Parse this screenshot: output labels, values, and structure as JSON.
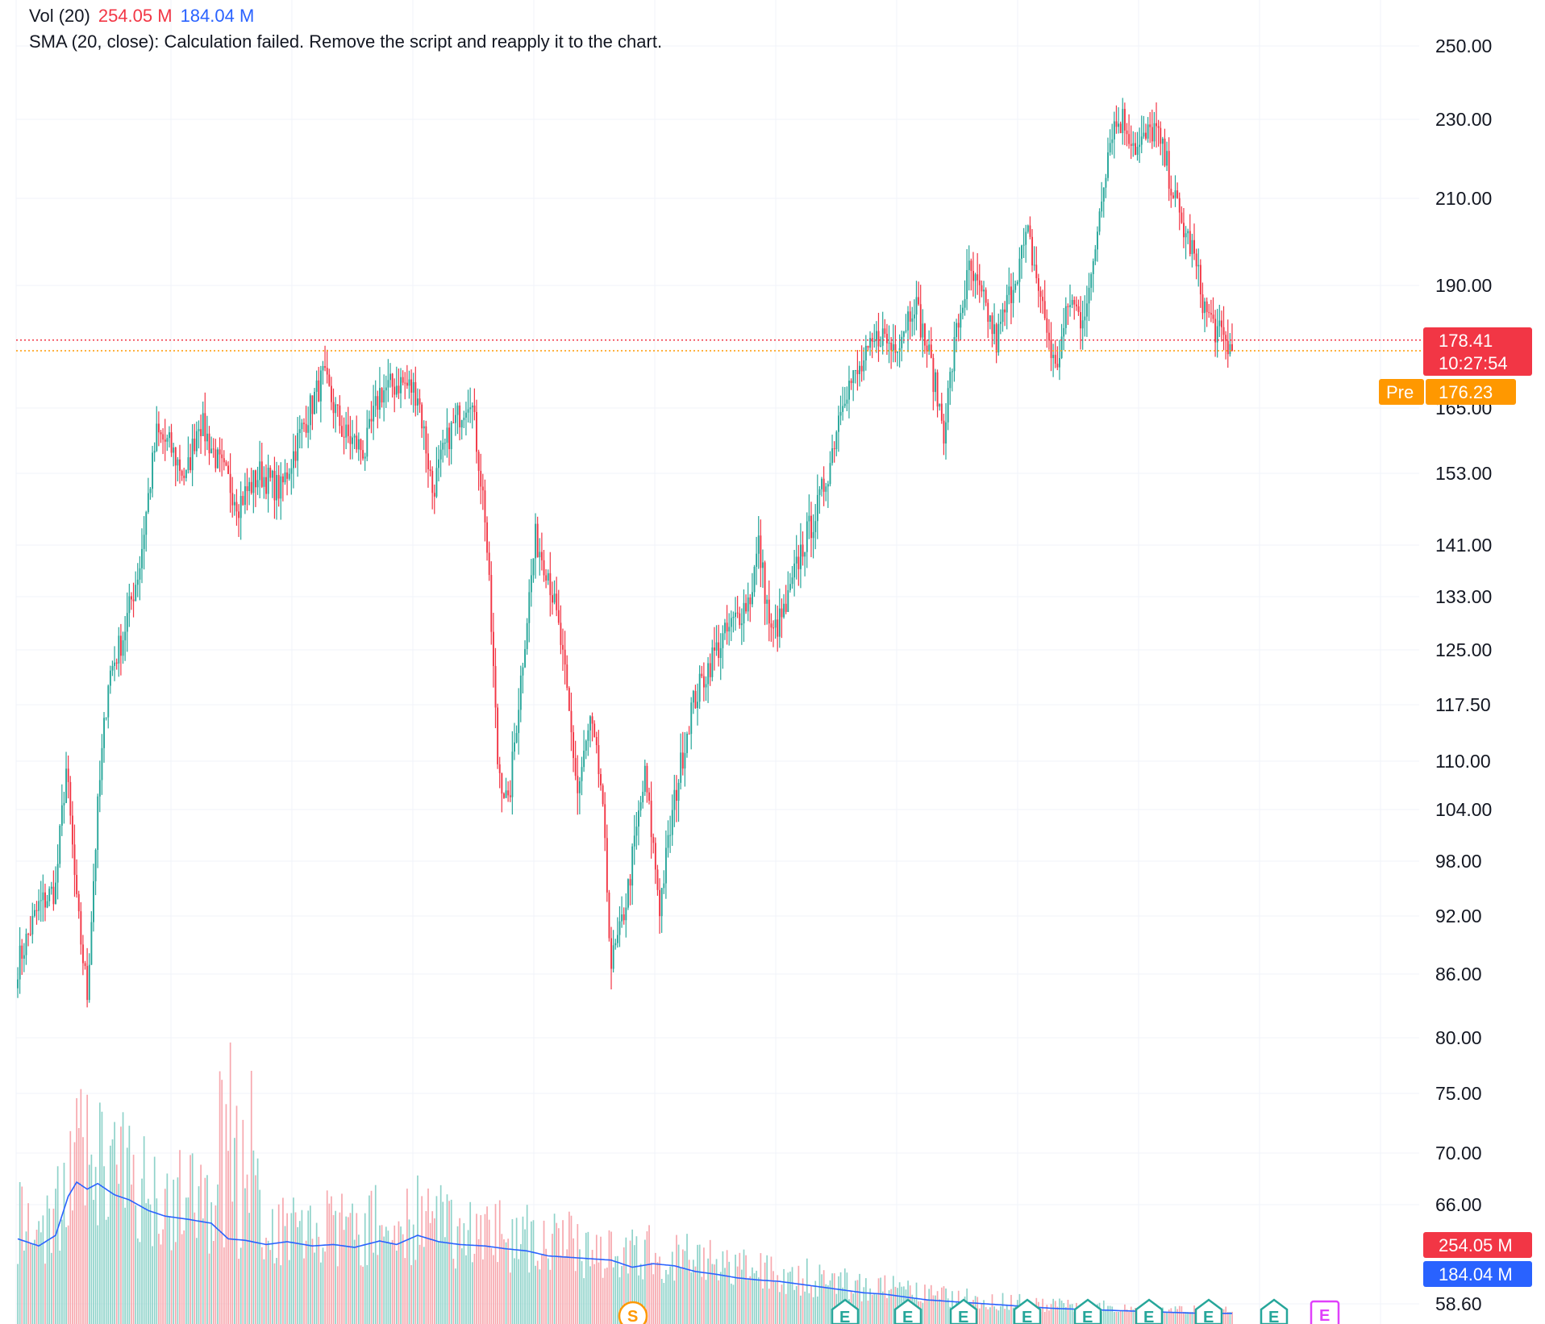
{
  "legend": {
    "volume_label": "Vol (20)",
    "volume_value": "254.05 M",
    "volume_ma_value": "184.04 M",
    "error_text": "SMA (20, close): Calculation failed. Remove the script and reapply it to the chart."
  },
  "colors": {
    "up": "#26a69a",
    "down": "#f23645",
    "volume_up": "#8fd3ca",
    "volume_down": "#f7a8ae",
    "volume_ma": "#2962ff",
    "premarket": "#ff9800",
    "grid": "#f0f3fa"
  },
  "price_axis": {
    "labels": [
      "250.00",
      "230.00",
      "210.00",
      "190.00",
      "165.00",
      "153.00",
      "141.00",
      "133.00",
      "125.00",
      "117.50",
      "110.00",
      "104.00",
      "98.00",
      "92.00",
      "86.00",
      "80.00",
      "75.00",
      "70.00",
      "66.00",
      "58.60"
    ]
  },
  "tags": {
    "last_price": "178.41",
    "countdown": "10:27:54",
    "pre_label": "Pre",
    "pre_price": "176.23",
    "volume": "254.05 M",
    "volume_ma": "184.04 M"
  },
  "events": [
    {
      "type": "split",
      "label": "S"
    },
    {
      "type": "earnings",
      "label": "E"
    },
    {
      "type": "earnings",
      "label": "E"
    },
    {
      "type": "earnings",
      "label": "E"
    },
    {
      "type": "earnings",
      "label": "E"
    },
    {
      "type": "earnings",
      "label": "E"
    },
    {
      "type": "earnings",
      "label": "E"
    },
    {
      "type": "earnings",
      "label": "E"
    },
    {
      "type": "earnings",
      "label": "E"
    },
    {
      "type": "earnings_upcoming",
      "label": "E"
    }
  ],
  "chart_data": {
    "type": "candlestick",
    "scale": "log",
    "y_axis_ticks": [
      250,
      230,
      210,
      190,
      165,
      153,
      141,
      133,
      125,
      117.5,
      110,
      104,
      98,
      92,
      86,
      80,
      75,
      70,
      66,
      58.6
    ],
    "last_price": 178.41,
    "premarket_price": 176.23,
    "close_path_anchors": [
      [
        0,
        87
      ],
      [
        10,
        93
      ],
      [
        18,
        95
      ],
      [
        23,
        109
      ],
      [
        28,
        93
      ],
      [
        33,
        84
      ],
      [
        38,
        104
      ],
      [
        43,
        121
      ],
      [
        50,
        127
      ],
      [
        58,
        138
      ],
      [
        66,
        160
      ],
      [
        72,
        158
      ],
      [
        80,
        152
      ],
      [
        86,
        163
      ],
      [
        95,
        155
      ],
      [
        105,
        148
      ],
      [
        115,
        153
      ],
      [
        125,
        150
      ],
      [
        135,
        161
      ],
      [
        145,
        171
      ],
      [
        155,
        160
      ],
      [
        165,
        157
      ],
      [
        172,
        168
      ],
      [
        182,
        170
      ],
      [
        190,
        168
      ],
      [
        197,
        150
      ],
      [
        205,
        160
      ],
      [
        215,
        168
      ],
      [
        222,
        146
      ],
      [
        228,
        110
      ],
      [
        233,
        104
      ],
      [
        238,
        118
      ],
      [
        246,
        142
      ],
      [
        252,
        137
      ],
      [
        258,
        126
      ],
      [
        266,
        106
      ],
      [
        272,
        115
      ],
      [
        277,
        107
      ],
      [
        282,
        87
      ],
      [
        286,
        90
      ],
      [
        290,
        95
      ],
      [
        298,
        108
      ],
      [
        305,
        93
      ],
      [
        312,
        105
      ],
      [
        320,
        117
      ],
      [
        330,
        124
      ],
      [
        340,
        129
      ],
      [
        348,
        133
      ],
      [
        352,
        141
      ],
      [
        358,
        127
      ],
      [
        365,
        131
      ],
      [
        372,
        140
      ],
      [
        380,
        147
      ],
      [
        386,
        155
      ],
      [
        392,
        168
      ],
      [
        400,
        172
      ],
      [
        410,
        180
      ],
      [
        415,
        177
      ],
      [
        420,
        180
      ],
      [
        426,
        187
      ],
      [
        433,
        175
      ],
      [
        440,
        161
      ],
      [
        446,
        180
      ],
      [
        452,
        193
      ],
      [
        460,
        185
      ],
      [
        465,
        178
      ],
      [
        470,
        186
      ],
      [
        475,
        194
      ],
      [
        480,
        201
      ],
      [
        487,
        185
      ],
      [
        493,
        172
      ],
      [
        500,
        187
      ],
      [
        505,
        183
      ],
      [
        510,
        190
      ],
      [
        515,
        212
      ],
      [
        520,
        228
      ],
      [
        525,
        230
      ],
      [
        532,
        222
      ],
      [
        540,
        228
      ],
      [
        546,
        218
      ],
      [
        552,
        205
      ],
      [
        558,
        198
      ],
      [
        564,
        185
      ],
      [
        570,
        180
      ],
      [
        577,
        176.23
      ]
    ],
    "volume_ma_anchors": [
      [
        0,
        120
      ],
      [
        10,
        110
      ],
      [
        18,
        125
      ],
      [
        24,
        180
      ],
      [
        28,
        200
      ],
      [
        33,
        190
      ],
      [
        38,
        198
      ],
      [
        46,
        182
      ],
      [
        53,
        175
      ],
      [
        62,
        160
      ],
      [
        70,
        152
      ],
      [
        80,
        148
      ],
      [
        92,
        142
      ],
      [
        100,
        120
      ],
      [
        108,
        118
      ],
      [
        118,
        112
      ],
      [
        128,
        116
      ],
      [
        140,
        110
      ],
      [
        150,
        112
      ],
      [
        160,
        108
      ],
      [
        172,
        117
      ],
      [
        180,
        112
      ],
      [
        190,
        125
      ],
      [
        200,
        116
      ],
      [
        210,
        112
      ],
      [
        222,
        110
      ],
      [
        232,
        106
      ],
      [
        242,
        103
      ],
      [
        252,
        96
      ],
      [
        262,
        94
      ],
      [
        272,
        92
      ],
      [
        282,
        90
      ],
      [
        292,
        80
      ],
      [
        302,
        85
      ],
      [
        312,
        82
      ],
      [
        322,
        74
      ],
      [
        332,
        70
      ],
      [
        342,
        65
      ],
      [
        352,
        62
      ],
      [
        362,
        60
      ],
      [
        372,
        56
      ],
      [
        382,
        52
      ],
      [
        392,
        48
      ],
      [
        402,
        44
      ],
      [
        412,
        42
      ],
      [
        422,
        38
      ],
      [
        432,
        34
      ],
      [
        442,
        32
      ],
      [
        452,
        30
      ],
      [
        462,
        28
      ],
      [
        472,
        26
      ],
      [
        482,
        24
      ],
      [
        492,
        22
      ],
      [
        502,
        21
      ],
      [
        512,
        20
      ],
      [
        522,
        19
      ],
      [
        532,
        18
      ],
      [
        542,
        17
      ],
      [
        552,
        16
      ],
      [
        562,
        15
      ],
      [
        570,
        15
      ],
      [
        577,
        15
      ]
    ]
  }
}
